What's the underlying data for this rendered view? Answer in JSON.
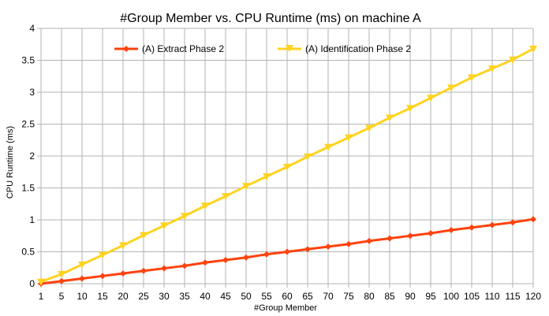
{
  "chart_data": {
    "type": "line",
    "title": "#Group Member vs. CPU Runtime (ms) on machine A",
    "xlabel": "#Group Member",
    "ylabel": "CPU Runtime (ms)",
    "categories": [
      "1",
      "5",
      "10",
      "15",
      "20",
      "25",
      "30",
      "35",
      "40",
      "45",
      "50",
      "55",
      "60",
      "65",
      "70",
      "75",
      "80",
      "85",
      "90",
      "95",
      "100",
      "105",
      "110",
      "115",
      "120"
    ],
    "ylim": [
      0,
      4
    ],
    "yticks": [
      "0",
      "0.5",
      "1",
      "1.5",
      "2",
      "2.5",
      "3",
      "3.5",
      "4"
    ],
    "grid": true,
    "legend_position": "top",
    "series": [
      {
        "name": "(A) Extract Phase 2",
        "color": "#ff420e",
        "marker": "diamond",
        "values": [
          0.0,
          0.04,
          0.08,
          0.12,
          0.16,
          0.2,
          0.24,
          0.28,
          0.33,
          0.37,
          0.41,
          0.46,
          0.5,
          0.54,
          0.58,
          0.62,
          0.67,
          0.71,
          0.75,
          0.79,
          0.84,
          0.88,
          0.92,
          0.96,
          1.01
        ]
      },
      {
        "name": "(A) Identification Phase 2",
        "color": "#ffd320",
        "marker": "triangle-down",
        "values": [
          0.03,
          0.15,
          0.3,
          0.45,
          0.6,
          0.76,
          0.91,
          1.06,
          1.22,
          1.37,
          1.53,
          1.68,
          1.83,
          1.99,
          2.14,
          2.29,
          2.44,
          2.6,
          2.75,
          2.91,
          3.07,
          3.23,
          3.37,
          3.51,
          3.68
        ]
      }
    ]
  }
}
